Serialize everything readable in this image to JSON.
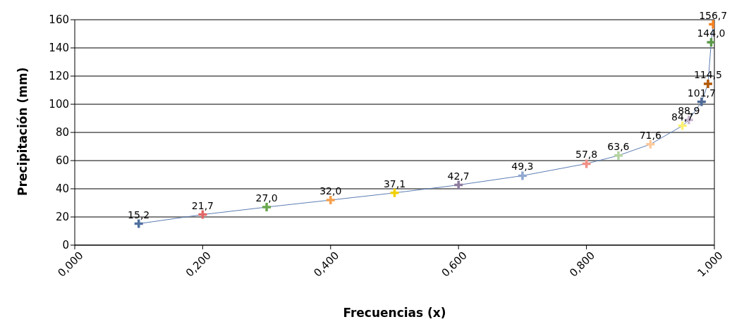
{
  "chart_data": {
    "type": "line",
    "xlabel": "Frecuencias (x)",
    "ylabel": "Precipitación (mm)",
    "x": [
      0.1,
      0.2,
      0.3,
      0.4,
      0.5,
      0.6,
      0.7,
      0.8,
      0.85,
      0.9,
      0.95,
      0.96,
      0.98,
      0.99,
      0.995,
      0.998
    ],
    "series": [
      {
        "color": "#5b7db4",
        "values": [
          15.2,
          21.7,
          27.0,
          32.0,
          37.1,
          42.7,
          49.3,
          57.8,
          63.6,
          71.6,
          84.7,
          88.9,
          101.7,
          114.5,
          144.0,
          156.7
        ],
        "colors": [
          "#4f6fa0",
          "#e06666",
          "#6aa84f",
          "#f6a04d",
          "#f0d000",
          "#8e7ba0",
          "#8fa8cf",
          "#ef8f85",
          "#b5d3a0",
          "#fcc99a",
          "#fff176",
          "#c9b7d0",
          "#4f6a96",
          "#b35a0a",
          "#5a9a4a",
          "#f5821f"
        ],
        "value_labels": [
          "15,2",
          "21,7",
          "27,0",
          "32,0",
          "37,1",
          "42,7",
          "49,3",
          "57,8",
          "63,6",
          "71,6",
          "84,7",
          "88,9",
          "101,7",
          "114,5",
          "144,0",
          "156,7"
        ]
      }
    ],
    "xlim": [
      0,
      1
    ],
    "xticks": [
      {
        "value": 0,
        "label": "0,000"
      },
      {
        "value": 0.2,
        "label": "0,200"
      },
      {
        "value": 0.4,
        "label": "0,400"
      },
      {
        "value": 0.6,
        "label": "0,600"
      },
      {
        "value": 0.8,
        "label": "0,800"
      },
      {
        "value": 1,
        "label": "1,000"
      }
    ],
    "ylim": [
      0,
      160
    ],
    "yticks": [
      0,
      20,
      40,
      60,
      80,
      100,
      120,
      140,
      160
    ],
    "grid": "y",
    "legend": false,
    "marker": "cross",
    "line_style": "solid"
  }
}
